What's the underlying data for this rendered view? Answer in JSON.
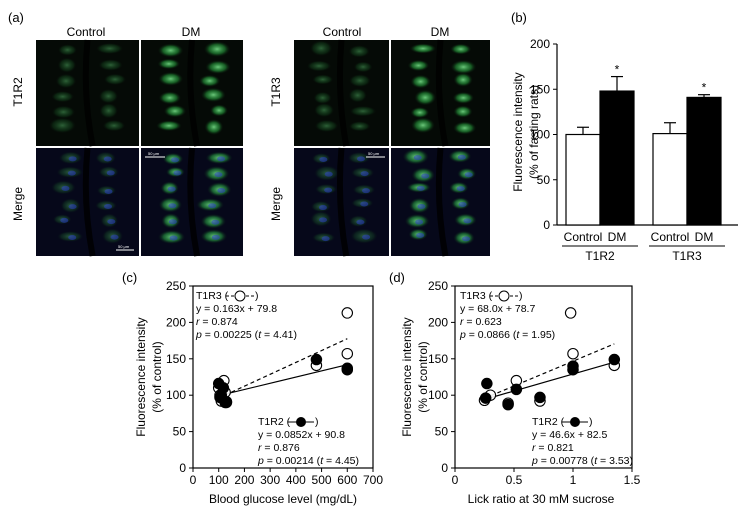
{
  "colors": {
    "micro_bg": "#050a06",
    "green": "#2ec14a",
    "blue": "#2030a0"
  },
  "panel_a": {
    "label": "(a)",
    "groups": [
      {
        "receptor": "T1R2",
        "control_label": "Control",
        "dm_label": "DM",
        "merge_label": "Merge",
        "scale_top": "50 μm",
        "scale_bottom": "50 μm"
      },
      {
        "receptor": "T1R3",
        "control_label": "Control",
        "dm_label": "DM",
        "merge_label": "Merge",
        "scale_top": "50 μm"
      }
    ]
  },
  "chart_data": [
    {
      "id": "b",
      "panel_label": "(b)",
      "type": "bar",
      "ylabel_lines": [
        "Fluorescence intensity",
        "(% of fasting rats)"
      ],
      "ylim": [
        0,
        200
      ],
      "yticks": [
        0,
        50,
        100,
        150,
        200
      ],
      "groups": [
        {
          "name": "T1R2",
          "bars": [
            {
              "label": "Control",
              "value": 100,
              "err": 8,
              "fill": "white",
              "star": ""
            },
            {
              "label": "DM",
              "value": 148,
              "err": 16,
              "fill": "black",
              "star": "*"
            }
          ]
        },
        {
          "name": "T1R3",
          "bars": [
            {
              "label": "Control",
              "value": 101,
              "err": 12,
              "fill": "white",
              "star": ""
            },
            {
              "label": "DM",
              "value": 141,
              "err": 3,
              "fill": "black",
              "star": "*"
            }
          ]
        }
      ]
    },
    {
      "id": "c",
      "panel_label": "(c)",
      "type": "scatter",
      "xlabel": "Blood glucose level (mg/dL)",
      "ylabel_lines": [
        "Fluorescence intensity",
        "(% of control)"
      ],
      "xlim": [
        0,
        700
      ],
      "ylim": [
        0,
        250
      ],
      "xticks": [
        0,
        100,
        200,
        300,
        400,
        500,
        600,
        700
      ],
      "yticks": [
        0,
        50,
        100,
        150,
        200,
        250
      ],
      "series": [
        {
          "name": "T1R3",
          "marker": "open",
          "line": "dashed",
          "slope": 0.163,
          "intercept": 79.8,
          "equation": "y = 0.163x + 79.8",
          "r_label": "r",
          "r_value": " = 0.874",
          "p_label": "p",
          "p_value": " = 0.00225 (",
          "t_label": "t",
          "t_value": " = 4.41)",
          "x": [
            100,
            105,
            110,
            115,
            120,
            125,
            130,
            480,
            600,
            600
          ],
          "y": [
            110,
            100,
            92,
            97,
            120,
            104,
            90,
            141,
            213,
            157
          ]
        },
        {
          "name": "T1R2",
          "marker": "filled",
          "line": "solid",
          "slope": 0.0852,
          "intercept": 90.8,
          "equation": "y = 0.0852x + 90.8",
          "r_label": "r",
          "r_value": " = 0.876",
          "p_label": "p",
          "p_value": " = 0.00214 (",
          "t_label": "t",
          "t_value": " = 4.45)",
          "x": [
            100,
            105,
            110,
            118,
            125,
            130,
            480,
            600,
            600
          ],
          "y": [
            116,
            97,
            100,
            110,
            90,
            91,
            149,
            137,
            135
          ]
        }
      ]
    },
    {
      "id": "d",
      "panel_label": "(d)",
      "type": "scatter",
      "xlabel": "Lick ratio at 30 mM sucrose",
      "ylabel_lines": [
        "Fluorescence intensity",
        "(% of control)"
      ],
      "xlim": [
        0,
        1.5
      ],
      "ylim": [
        0,
        250
      ],
      "xticks": [
        0,
        0.5,
        1,
        1.5
      ],
      "xticklabels": [
        "0",
        "0.5",
        "1",
        "1.5"
      ],
      "yticks": [
        0,
        50,
        100,
        150,
        200,
        250
      ],
      "series": [
        {
          "name": "T1R3",
          "marker": "open",
          "line": "dashed",
          "slope": 68.0,
          "intercept": 78.7,
          "equation": "y = 68.0x + 78.7",
          "r_label": "r",
          "r_value": " = 0.623",
          "p_label": "p",
          "p_value": " = 0.0866 (",
          "t_label": "t",
          "t_value": " = 1.95)",
          "x": [
            0.25,
            0.45,
            0.52,
            0.72,
            0.98,
            1.0,
            1.35,
            0.3
          ],
          "y": [
            93,
            89,
            120,
            92,
            213,
            157,
            141,
            100
          ]
        },
        {
          "name": "T1R2",
          "marker": "filled",
          "line": "solid",
          "slope": 46.6,
          "intercept": 82.5,
          "equation": "y = 46.6x + 82.5",
          "r_label": "r",
          "r_value": " = 0.821",
          "p_label": "p",
          "p_value": " = 0.00778 (",
          "t_label": "t",
          "t_value": " = 3.53)",
          "x": [
            0.27,
            0.45,
            0.52,
            0.72,
            1.0,
            1.0,
            1.35,
            0.26
          ],
          "y": [
            116,
            87,
            108,
            97,
            140,
            135,
            149,
            96
          ]
        }
      ]
    }
  ]
}
